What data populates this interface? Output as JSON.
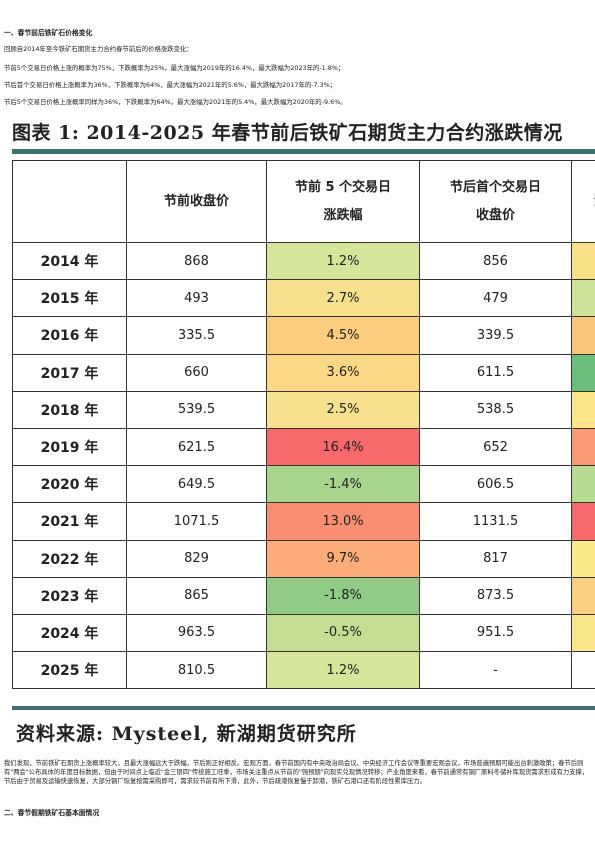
{
  "section1": {
    "heading": "一、春节前后铁矿石价格变化",
    "intro": "回顾自2014年至今铁矿石期货主力合约春节前后的价格涨跌变化：",
    "line1": "节前5个交易日价格上涨的概率为75%，下跌概率为25%，最大涨幅为2019年的16.4%，最大跌幅为2023年的-1.8%；",
    "line2": "节后首个交易日价格上涨概率为36%，下跌概率为64%，最大涨幅为2021年的5.6%，最大跌幅为2017年的-7.3%；",
    "line3": "节后5个交易日价格上涨概率同样为36%，下跌概率为64%，最大涨幅为2021年的5.4%，最大跌幅为2020年的-9.6%。"
  },
  "figure": {
    "title": "图表 1:  2014-2025 年春节前后铁矿石期货主力合约涨跌情况",
    "headers": [
      "",
      "节前收盘价",
      "节前 5 个交易日\n涨跌幅",
      "节后首个交易日\n收盘价",
      "涨"
    ],
    "rows": [
      {
        "year": "2014 年",
        "close": "868",
        "chg": "1.2%",
        "after": "856",
        "next": "-",
        "chg_color": "#d5e59a",
        "next_color": "#fbe08a"
      },
      {
        "year": "2015 年",
        "close": "493",
        "chg": "2.7%",
        "after": "479",
        "next": "-",
        "chg_color": "#f6e08e",
        "next_color": "#cde39a"
      },
      {
        "year": "2016 年",
        "close": "335.5",
        "chg": "4.5%",
        "after": "339.5",
        "next": "1",
        "chg_color": "#fbcd7e",
        "next_color": "#f9c47b"
      },
      {
        "year": "2017 年",
        "close": "660",
        "chg": "3.6%",
        "after": "611.5",
        "next": "-",
        "chg_color": "#fad886",
        "next_color": "#6bbd7b"
      },
      {
        "year": "2018 年",
        "close": "539.5",
        "chg": "2.5%",
        "after": "538.5",
        "next": "-(",
        "chg_color": "#f7e18f",
        "next_color": "#fde58c"
      },
      {
        "year": "2019 年",
        "close": "621.5",
        "chg": "16.4%",
        "after": "652",
        "next": "4",
        "chg_color": "#f8696b",
        "next_color": "#f99a75"
      },
      {
        "year": "2020 年",
        "close": "649.5",
        "chg": "-1.4%",
        "after": "606.5",
        "next": "-(",
        "chg_color": "#a8d48d",
        "next_color": "#b7db92"
      },
      {
        "year": "2021 年",
        "close": "1071.5",
        "chg": "13.0%",
        "after": "1131.5",
        "next": "5",
        "chg_color": "#f98e72",
        "next_color": "#f8696b"
      },
      {
        "year": "2022 年",
        "close": "829",
        "chg": "9.7%",
        "after": "817",
        "next": "-",
        "chg_color": "#fbac78",
        "next_color": "#fde88c"
      },
      {
        "year": "2023 年",
        "close": "865",
        "chg": "-1.8%",
        "after": "873.5",
        "next": "1",
        "chg_color": "#92cb88",
        "next_color": "#fad083"
      },
      {
        "year": "2024 年",
        "close": "963.5",
        "chg": "-0.5%",
        "after": "951.5",
        "next": "-",
        "chg_color": "#c4de94",
        "next_color": "#fce68c"
      },
      {
        "year": "2025 年",
        "close": "810.5",
        "chg": "1.2%",
        "after": "-",
        "next": "",
        "chg_color": "#d5e59a",
        "next_color": "#ffffff"
      }
    ],
    "source": "资料来源:  Mysteel, 新湖期货研究所"
  },
  "analysis": "我们发现，节前铁矿石期货上涨概率较大，且最大涨幅远大于跌幅，节后则正好相反。宏观方面，春节前国内有中央政治局会议、中央经济工作会议等重要宏观会议，市场普遍预期可能出台刺激政策；春节后则有\"两会\"公布具体的年度目标数据，但由于时间点上临近\"金三银四\"传统施工旺季，市场关注重点从节前的\"强预期\"向现实兑现情况转移；产业角度来看，春节前通常有钢厂原料冬储补库现货需求形成有力支撑，节后由于贸易及运输快速恢复，大部分钢厂恢复按需采购即可，需求较节前有所下滑，此外，节后疏港恢复慢于卸港，铁矿石港口还有阶段性累库压力。",
  "section2": {
    "heading": "二、春节假期铁矿石基本面情况"
  }
}
